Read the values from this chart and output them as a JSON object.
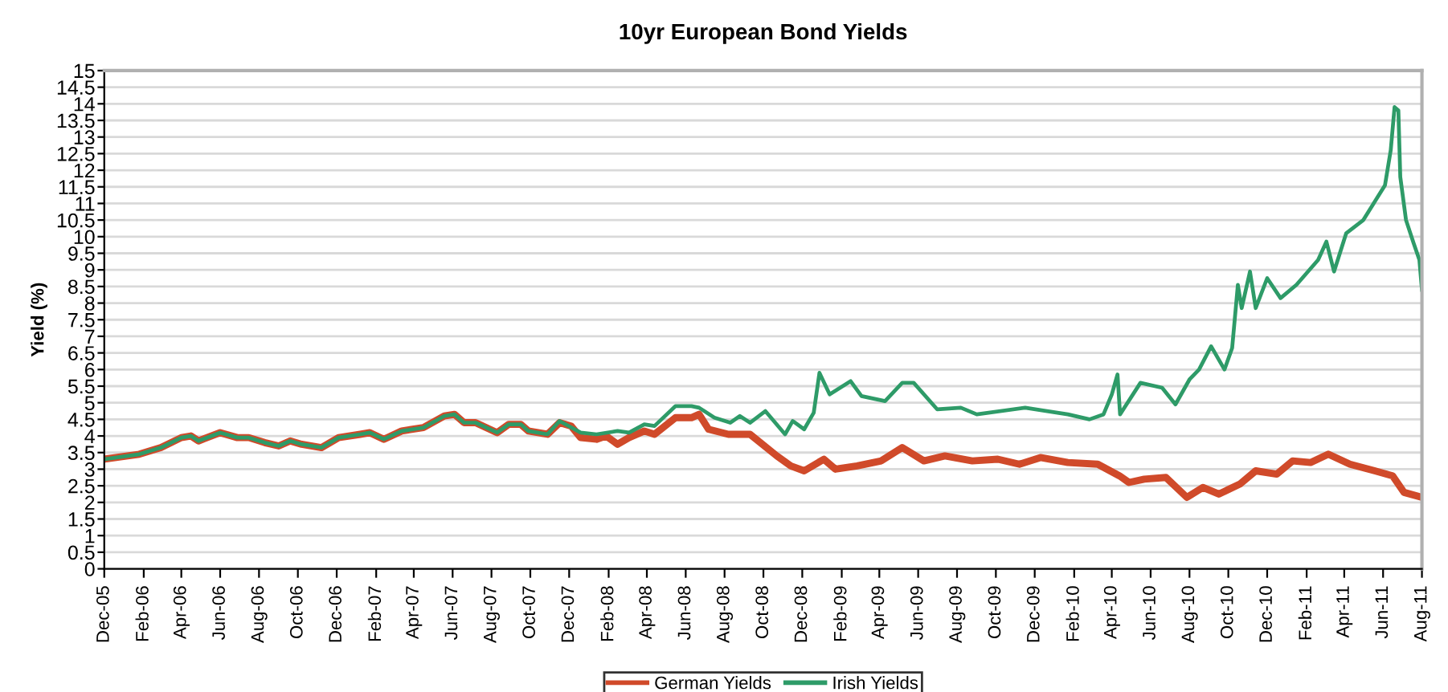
{
  "chart_data": {
    "type": "line",
    "title": "10yr European Bond Yields",
    "ylabel": "Yield (%)",
    "xlim": [
      "2005-12-01",
      "2011-08-01"
    ],
    "xticks": [
      {
        "value": "2005-12-01",
        "label": "Dec-05"
      },
      {
        "value": "2006-02-01",
        "label": "Feb-06"
      },
      {
        "value": "2006-04-01",
        "label": "Apr-06"
      },
      {
        "value": "2006-06-01",
        "label": "Jun-06"
      },
      {
        "value": "2006-08-01",
        "label": "Aug-06"
      },
      {
        "value": "2006-10-01",
        "label": "Oct-06"
      },
      {
        "value": "2006-12-01",
        "label": "Dec-06"
      },
      {
        "value": "2007-02-01",
        "label": "Feb-07"
      },
      {
        "value": "2007-04-01",
        "label": "Apr-07"
      },
      {
        "value": "2007-06-01",
        "label": "Jun-07"
      },
      {
        "value": "2007-08-01",
        "label": "Aug-07"
      },
      {
        "value": "2007-10-01",
        "label": "Oct-07"
      },
      {
        "value": "2007-12-01",
        "label": "Dec-07"
      },
      {
        "value": "2008-02-01",
        "label": "Feb-08"
      },
      {
        "value": "2008-04-01",
        "label": "Apr-08"
      },
      {
        "value": "2008-06-01",
        "label": "Jun-08"
      },
      {
        "value": "2008-08-01",
        "label": "Aug-08"
      },
      {
        "value": "2008-10-01",
        "label": "Oct-08"
      },
      {
        "value": "2008-12-01",
        "label": "Dec-08"
      },
      {
        "value": "2009-02-01",
        "label": "Feb-09"
      },
      {
        "value": "2009-04-01",
        "label": "Apr-09"
      },
      {
        "value": "2009-06-01",
        "label": "Jun-09"
      },
      {
        "value": "2009-08-01",
        "label": "Aug-09"
      },
      {
        "value": "2009-10-01",
        "label": "Oct-09"
      },
      {
        "value": "2009-12-01",
        "label": "Dec-09"
      },
      {
        "value": "2010-02-01",
        "label": "Feb-10"
      },
      {
        "value": "2010-04-01",
        "label": "Apr-10"
      },
      {
        "value": "2010-06-01",
        "label": "Jun-10"
      },
      {
        "value": "2010-08-01",
        "label": "Aug-10"
      },
      {
        "value": "2010-10-01",
        "label": "Oct-10"
      },
      {
        "value": "2010-12-01",
        "label": "Dec-10"
      },
      {
        "value": "2011-02-01",
        "label": "Feb-11"
      },
      {
        "value": "2011-04-01",
        "label": "Apr-11"
      },
      {
        "value": "2011-06-01",
        "label": "Jun-11"
      },
      {
        "value": "2011-08-01",
        "label": "Aug-11"
      }
    ],
    "ylim": [
      0,
      15
    ],
    "yticks": [
      0,
      0.5,
      1,
      1.5,
      2,
      2.5,
      3,
      3.5,
      4,
      4.5,
      5,
      5.5,
      6,
      6.5,
      7,
      7.5,
      8,
      8.5,
      9,
      9.5,
      10,
      10.5,
      11,
      11.5,
      12,
      12.5,
      13,
      13.5,
      14,
      14.5,
      15
    ],
    "grid": "y",
    "legend": "bottom",
    "marker": "none",
    "line_style": "solid",
    "series": [
      {
        "name": "German Yields",
        "color": "#d04a2a",
        "x": [
          "2005-12-01",
          "2006-01-25",
          "2006-02-28",
          "2006-04-01",
          "2006-04-16",
          "2006-04-28",
          "2006-06-01",
          "2006-06-28",
          "2006-07-16",
          "2006-08-10",
          "2006-09-01",
          "2006-09-19",
          "2006-10-07",
          "2006-11-07",
          "2006-12-04",
          "2007-01-07",
          "2007-01-22",
          "2007-02-13",
          "2007-03-13",
          "2007-04-16",
          "2007-05-19",
          "2007-06-04",
          "2007-06-19",
          "2007-07-07",
          "2007-08-10",
          "2007-08-28",
          "2007-09-16",
          "2007-09-28",
          "2007-10-28",
          "2007-11-16",
          "2007-12-04",
          "2007-12-19",
          "2008-01-13",
          "2008-01-28",
          "2008-02-15",
          "2008-03-04",
          "2008-03-28",
          "2008-04-13",
          "2008-05-16",
          "2008-06-10",
          "2008-06-22",
          "2008-07-07",
          "2008-08-07",
          "2008-09-10",
          "2008-10-22",
          "2008-11-13",
          "2008-12-04",
          "2009-01-04",
          "2009-01-22",
          "2009-02-25",
          "2009-04-04",
          "2009-05-07",
          "2009-06-10",
          "2009-07-13",
          "2009-08-25",
          "2009-10-04",
          "2009-11-07",
          "2009-12-10",
          "2010-01-22",
          "2010-03-10",
          "2010-04-13",
          "2010-04-28",
          "2010-05-22",
          "2010-06-25",
          "2010-07-28",
          "2010-08-22",
          "2010-09-16",
          "2010-10-19",
          "2010-11-13",
          "2010-12-16",
          "2011-01-10",
          "2011-02-07",
          "2011-03-07",
          "2011-04-10",
          "2011-05-19",
          "2011-06-16",
          "2011-07-04",
          "2011-08-01"
        ],
        "values": [
          3.3,
          3.45,
          3.65,
          3.95,
          4.0,
          3.85,
          4.1,
          3.95,
          3.95,
          3.8,
          3.7,
          3.85,
          3.75,
          3.65,
          3.95,
          4.05,
          4.1,
          3.9,
          4.15,
          4.25,
          4.6,
          4.65,
          4.4,
          4.4,
          4.1,
          4.35,
          4.35,
          4.15,
          4.05,
          4.4,
          4.3,
          3.95,
          3.9,
          4.0,
          3.75,
          3.95,
          4.15,
          4.05,
          4.55,
          4.55,
          4.65,
          4.2,
          4.05,
          4.05,
          3.4,
          3.1,
          2.95,
          3.3,
          3.0,
          3.1,
          3.25,
          3.65,
          3.25,
          3.4,
          3.25,
          3.3,
          3.15,
          3.35,
          3.2,
          3.15,
          2.8,
          2.6,
          2.7,
          2.75,
          2.15,
          2.45,
          2.25,
          2.55,
          2.95,
          2.85,
          3.25,
          3.2,
          3.45,
          3.15,
          2.95,
          2.8,
          2.3,
          2.15
        ]
      },
      {
        "name": "Irish Yields",
        "color": "#2e9b68",
        "x": [
          "2005-12-01",
          "2006-01-25",
          "2006-02-28",
          "2006-04-01",
          "2006-04-16",
          "2006-04-28",
          "2006-06-01",
          "2006-06-28",
          "2006-07-16",
          "2006-08-10",
          "2006-09-01",
          "2006-09-19",
          "2006-10-07",
          "2006-11-07",
          "2006-12-04",
          "2007-01-07",
          "2007-01-22",
          "2007-02-13",
          "2007-03-13",
          "2007-04-16",
          "2007-05-19",
          "2007-06-04",
          "2007-06-19",
          "2007-07-07",
          "2007-08-10",
          "2007-08-28",
          "2007-09-16",
          "2007-09-28",
          "2007-10-28",
          "2007-11-16",
          "2007-12-19",
          "2008-01-13",
          "2008-02-15",
          "2008-03-04",
          "2008-03-28",
          "2008-04-13",
          "2008-05-16",
          "2008-06-10",
          "2008-06-22",
          "2008-07-16",
          "2008-08-10",
          "2008-08-25",
          "2008-09-10",
          "2008-10-04",
          "2008-11-04",
          "2008-11-16",
          "2008-12-04",
          "2008-12-19",
          "2008-12-28",
          "2009-01-13",
          "2009-02-15",
          "2009-03-04",
          "2009-04-10",
          "2009-05-07",
          "2009-05-25",
          "2009-07-01",
          "2009-08-07",
          "2009-09-01",
          "2009-11-16",
          "2010-01-22",
          "2010-02-25",
          "2010-03-19",
          "2010-04-01",
          "2010-04-10",
          "2010-04-14",
          "2010-05-16",
          "2010-06-19",
          "2010-07-10",
          "2010-08-01",
          "2010-08-16",
          "2010-09-04",
          "2010-09-25",
          "2010-10-07",
          "2010-10-16",
          "2010-10-22",
          "2010-11-04",
          "2010-11-13",
          "2010-12-01",
          "2010-12-22",
          "2011-01-16",
          "2011-02-19",
          "2011-03-04",
          "2011-03-16",
          "2011-04-04",
          "2011-05-01",
          "2011-05-22",
          "2011-06-04",
          "2011-06-13",
          "2011-06-19",
          "2011-06-25",
          "2011-06-28",
          "2011-07-07",
          "2011-07-19",
          "2011-07-28",
          "2011-08-01"
        ],
        "values": [
          3.3,
          3.45,
          3.65,
          3.95,
          4.0,
          3.85,
          4.1,
          3.95,
          3.95,
          3.8,
          3.7,
          3.85,
          3.75,
          3.65,
          3.95,
          4.05,
          4.1,
          3.9,
          4.15,
          4.25,
          4.6,
          4.65,
          4.4,
          4.4,
          4.1,
          4.35,
          4.35,
          4.15,
          4.05,
          4.45,
          4.1,
          4.05,
          4.15,
          4.1,
          4.35,
          4.3,
          4.9,
          4.9,
          4.85,
          4.55,
          4.4,
          4.6,
          4.4,
          4.75,
          4.05,
          4.45,
          4.2,
          4.7,
          5.9,
          5.25,
          5.65,
          5.2,
          5.05,
          5.6,
          5.6,
          4.8,
          4.85,
          4.65,
          4.85,
          4.65,
          4.5,
          4.65,
          5.25,
          5.85,
          4.65,
          5.6,
          5.45,
          4.95,
          5.7,
          6.0,
          6.7,
          6.0,
          6.65,
          8.55,
          7.85,
          8.95,
          7.85,
          8.75,
          8.15,
          8.55,
          9.3,
          9.85,
          8.95,
          10.1,
          10.5,
          11.15,
          11.55,
          12.6,
          13.9,
          13.8,
          11.8,
          10.5,
          9.8,
          9.3,
          8.4
        ]
      }
    ]
  }
}
